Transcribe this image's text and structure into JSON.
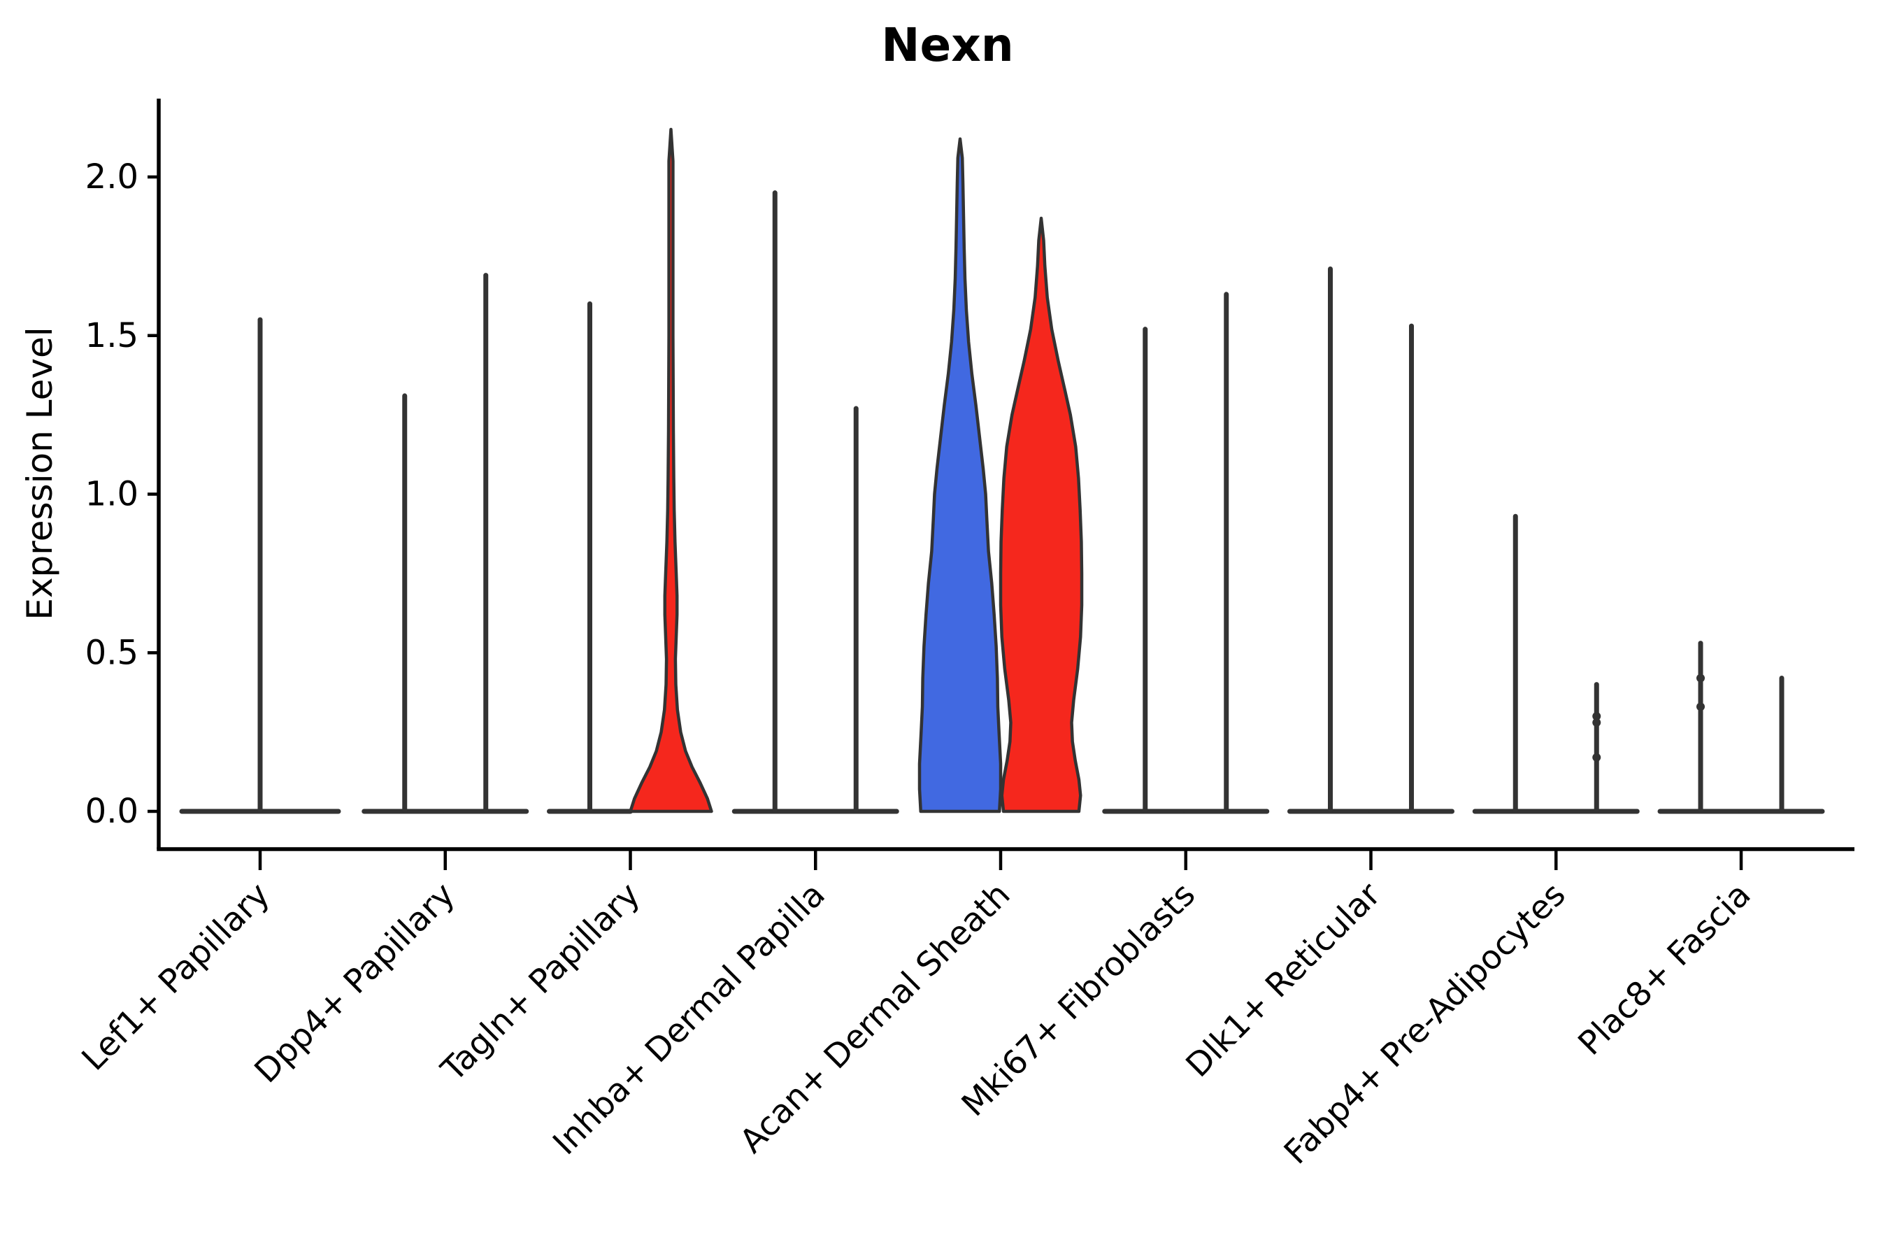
{
  "figure": {
    "title": "Nexn",
    "ylabel": "Expression Level"
  },
  "chart_data": {
    "type": "violin",
    "title": "Nexn",
    "xlabel": "",
    "ylabel": "Expression Level",
    "ytick_labels": [
      "0.0",
      "0.5",
      "1.0",
      "1.5",
      "2.0"
    ],
    "ytick_values": [
      0.0,
      0.5,
      1.0,
      1.5,
      2.0
    ],
    "ylim": [
      -0.12,
      2.25
    ],
    "grid": false,
    "legend": "none",
    "colors": {
      "blue": "#4169E1",
      "red": "#F5271D",
      "outline": "#333333",
      "axis": "#000000"
    },
    "categories": [
      "Lef1+ Papillary",
      "Dpp4+ Papillary",
      "Tagln+ Papillary",
      "Inhba+ Dermal Papilla",
      "Acan+ Dermal Sheath",
      "Mki67+ Fibroblasts",
      "Dlk1+ Reticular",
      "Fabp4+ Pre-Adipocytes",
      "Plac8+ Fascia"
    ],
    "violins": [
      {
        "category": "Lef1+ Papillary",
        "side": "center",
        "color_key": null,
        "max_expression": 1.55,
        "shape": null,
        "knobs": []
      },
      {
        "category": "Dpp4+ Papillary",
        "side": "left",
        "color_key": "blue",
        "max_expression": 1.31,
        "shape": null,
        "knobs": []
      },
      {
        "category": "Dpp4+ Papillary",
        "side": "right",
        "color_key": "red",
        "max_expression": 1.69,
        "shape": null,
        "knobs": []
      },
      {
        "category": "Tagln+ Papillary",
        "side": "left",
        "color_key": "blue",
        "max_expression": 1.6,
        "shape": null,
        "knobs": []
      },
      {
        "category": "Tagln+ Papillary",
        "side": "right",
        "color_key": "red",
        "max_expression": 2.15,
        "shape": [
          [
            0,
            1.0
          ],
          [
            0.04,
            0.9
          ],
          [
            0.09,
            0.72
          ],
          [
            0.14,
            0.52
          ],
          [
            0.19,
            0.36
          ],
          [
            0.25,
            0.24
          ],
          [
            0.32,
            0.16
          ],
          [
            0.4,
            0.12
          ],
          [
            0.48,
            0.11
          ],
          [
            0.55,
            0.13
          ],
          [
            0.62,
            0.15
          ],
          [
            0.68,
            0.15
          ],
          [
            0.75,
            0.13
          ],
          [
            0.85,
            0.1
          ],
          [
            0.95,
            0.08
          ],
          [
            1.05,
            0.07
          ],
          [
            1.2,
            0.06
          ],
          [
            1.5,
            0.05
          ],
          [
            1.8,
            0.05
          ],
          [
            2.05,
            0.05
          ],
          [
            2.15,
            0.0
          ]
        ],
        "knobs": []
      },
      {
        "category": "Inhba+ Dermal Papilla",
        "side": "left",
        "color_key": "blue",
        "max_expression": 1.95,
        "shape": null,
        "knobs": []
      },
      {
        "category": "Inhba+ Dermal Papilla",
        "side": "right",
        "color_key": "red",
        "max_expression": 1.27,
        "shape": null,
        "knobs": []
      },
      {
        "category": "Acan+ Dermal Sheath",
        "side": "left",
        "color_key": "blue",
        "max_expression": 2.12,
        "shape": [
          [
            0,
            0.97
          ],
          [
            0.07,
            1.0
          ],
          [
            0.15,
            1.0
          ],
          [
            0.25,
            0.96
          ],
          [
            0.33,
            0.93
          ],
          [
            0.42,
            0.92
          ],
          [
            0.52,
            0.89
          ],
          [
            0.62,
            0.84
          ],
          [
            0.72,
            0.78
          ],
          [
            0.82,
            0.7
          ],
          [
            0.92,
            0.66
          ],
          [
            1.0,
            0.63
          ],
          [
            1.08,
            0.57
          ],
          [
            1.18,
            0.48
          ],
          [
            1.28,
            0.39
          ],
          [
            1.38,
            0.29
          ],
          [
            1.48,
            0.21
          ],
          [
            1.58,
            0.155
          ],
          [
            1.68,
            0.12
          ],
          [
            1.78,
            0.1
          ],
          [
            1.88,
            0.085
          ],
          [
            1.98,
            0.07
          ],
          [
            2.06,
            0.055
          ],
          [
            2.12,
            0.0
          ]
        ],
        "knobs": []
      },
      {
        "category": "Acan+ Dermal Sheath",
        "side": "right",
        "color_key": "red",
        "max_expression": 1.87,
        "shape": [
          [
            0,
            0.93
          ],
          [
            0.05,
            0.97
          ],
          [
            0.1,
            0.93
          ],
          [
            0.16,
            0.84
          ],
          [
            0.22,
            0.77
          ],
          [
            0.28,
            0.75
          ],
          [
            0.35,
            0.8
          ],
          [
            0.45,
            0.9
          ],
          [
            0.55,
            0.97
          ],
          [
            0.65,
            1.0
          ],
          [
            0.75,
            1.0
          ],
          [
            0.85,
            0.99
          ],
          [
            0.95,
            0.96
          ],
          [
            1.05,
            0.92
          ],
          [
            1.15,
            0.85
          ],
          [
            1.25,
            0.72
          ],
          [
            1.33,
            0.58
          ],
          [
            1.42,
            0.42
          ],
          [
            1.52,
            0.26
          ],
          [
            1.62,
            0.15
          ],
          [
            1.72,
            0.09
          ],
          [
            1.8,
            0.06
          ],
          [
            1.87,
            0.0
          ]
        ],
        "knobs": []
      },
      {
        "category": "Mki67+ Fibroblasts",
        "side": "left",
        "color_key": "blue",
        "max_expression": 1.52,
        "shape": null,
        "knobs": []
      },
      {
        "category": "Mki67+ Fibroblasts",
        "side": "right",
        "color_key": "red",
        "max_expression": 1.63,
        "shape": null,
        "knobs": []
      },
      {
        "category": "Dlk1+ Reticular",
        "side": "left",
        "color_key": "blue",
        "max_expression": 1.71,
        "shape": null,
        "knobs": []
      },
      {
        "category": "Dlk1+ Reticular",
        "side": "right",
        "color_key": "red",
        "max_expression": 1.53,
        "shape": null,
        "knobs": []
      },
      {
        "category": "Fabp4+ Pre-Adipocytes",
        "side": "left",
        "color_key": "blue",
        "max_expression": 0.93,
        "shape": null,
        "knobs": []
      },
      {
        "category": "Fabp4+ Pre-Adipocytes",
        "side": "right",
        "color_key": "red",
        "max_expression": 0.4,
        "shape": null,
        "knobs": [
          0.3,
          0.28,
          0.17
        ]
      },
      {
        "category": "Plac8+ Fascia",
        "side": "left",
        "color_key": "blue",
        "max_expression": 0.53,
        "shape": null,
        "knobs": [
          0.42,
          0.33
        ]
      },
      {
        "category": "Plac8+ Fascia",
        "side": "right",
        "color_key": "red",
        "max_expression": 0.42,
        "shape": null,
        "knobs": []
      }
    ]
  }
}
